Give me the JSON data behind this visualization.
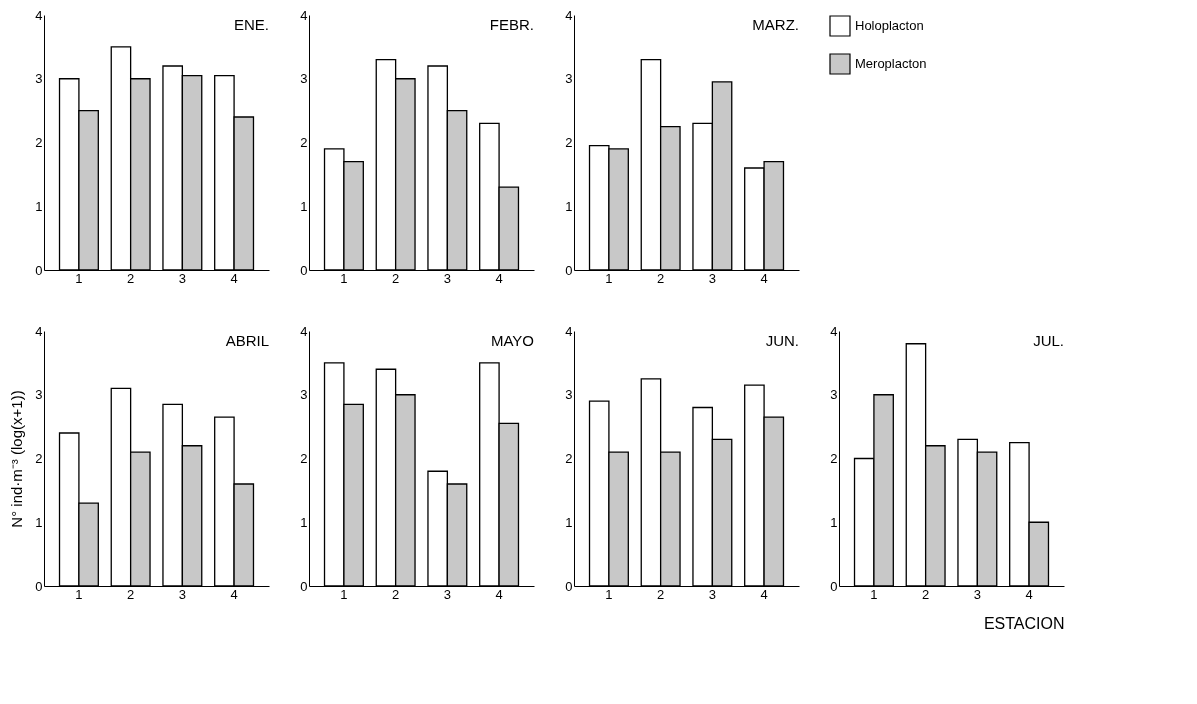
{
  "chart_data": [
    {
      "type": "bar",
      "title": "ENE.",
      "categories": [
        "1",
        "2",
        "3",
        "4"
      ],
      "ylim": [
        0,
        4
      ],
      "yticks": [
        0,
        1,
        2,
        3,
        4
      ],
      "series": [
        {
          "color": "#ffffff",
          "values": [
            3.0,
            3.5,
            3.2,
            3.05
          ]
        },
        {
          "color": "#c8c8c8",
          "values": [
            2.5,
            3.0,
            3.05,
            2.4
          ]
        }
      ]
    },
    {
      "type": "bar",
      "title": "FEBR.",
      "categories": [
        "1",
        "2",
        "3",
        "4"
      ],
      "ylim": [
        0,
        4
      ],
      "yticks": [
        0,
        1,
        2,
        3,
        4
      ],
      "series": [
        {
          "color": "#ffffff",
          "values": [
            1.9,
            3.3,
            3.2,
            2.3
          ]
        },
        {
          "color": "#c8c8c8",
          "values": [
            1.7,
            3.0,
            2.5,
            1.3
          ]
        }
      ]
    },
    {
      "type": "bar",
      "title": "MARZ.",
      "categories": [
        "1",
        "2",
        "3",
        "4"
      ],
      "ylim": [
        0,
        4
      ],
      "yticks": [
        0,
        1,
        2,
        3,
        4
      ],
      "legend": "right",
      "series": [
        {
          "name": "Holoplacton",
          "color": "#ffffff",
          "values": [
            1.95,
            3.3,
            2.3,
            1.6
          ]
        },
        {
          "name": "Meroplacton",
          "color": "#c8c8c8",
          "values": [
            1.9,
            2.25,
            2.95,
            1.7
          ]
        }
      ]
    },
    {
      "type": "bar",
      "title": "ABRIL",
      "ylabel": "N° ind·m⁻³ (log(x+1))",
      "categories": [
        "1",
        "2",
        "3",
        "4"
      ],
      "ylim": [
        0,
        4
      ],
      "yticks": [
        0,
        1,
        2,
        3,
        4
      ],
      "series": [
        {
          "color": "#ffffff",
          "values": [
            2.4,
            3.1,
            2.85,
            2.65
          ]
        },
        {
          "color": "#c8c8c8",
          "values": [
            1.3,
            2.1,
            2.2,
            1.6
          ]
        }
      ]
    },
    {
      "type": "bar",
      "title": "MAYO",
      "categories": [
        "1",
        "2",
        "3",
        "4"
      ],
      "ylim": [
        0,
        4
      ],
      "yticks": [
        0,
        1,
        2,
        3,
        4
      ],
      "series": [
        {
          "color": "#ffffff",
          "values": [
            3.5,
            3.4,
            1.8,
            3.5
          ]
        },
        {
          "color": "#c8c8c8",
          "values": [
            2.85,
            3.0,
            1.6,
            2.55
          ]
        }
      ]
    },
    {
      "type": "bar",
      "title": "JUN.",
      "categories": [
        "1",
        "2",
        "3",
        "4"
      ],
      "ylim": [
        0,
        4
      ],
      "yticks": [
        0,
        1,
        2,
        3,
        4
      ],
      "series": [
        {
          "color": "#ffffff",
          "values": [
            2.9,
            3.25,
            2.8,
            3.15
          ]
        },
        {
          "color": "#c8c8c8",
          "values": [
            2.1,
            2.1,
            2.3,
            2.65
          ]
        }
      ]
    },
    {
      "type": "bar",
      "title": "JUL.",
      "xlabel": "ESTACION",
      "categories": [
        "1",
        "2",
        "3",
        "4"
      ],
      "ylim": [
        0,
        4
      ],
      "yticks": [
        0,
        1,
        2,
        3,
        4
      ],
      "series": [
        {
          "color": "#ffffff",
          "values": [
            2.0,
            3.8,
            2.3,
            2.25
          ]
        },
        {
          "color": "#c8c8c8",
          "values": [
            3.0,
            2.2,
            2.1,
            1.0
          ]
        }
      ]
    }
  ]
}
